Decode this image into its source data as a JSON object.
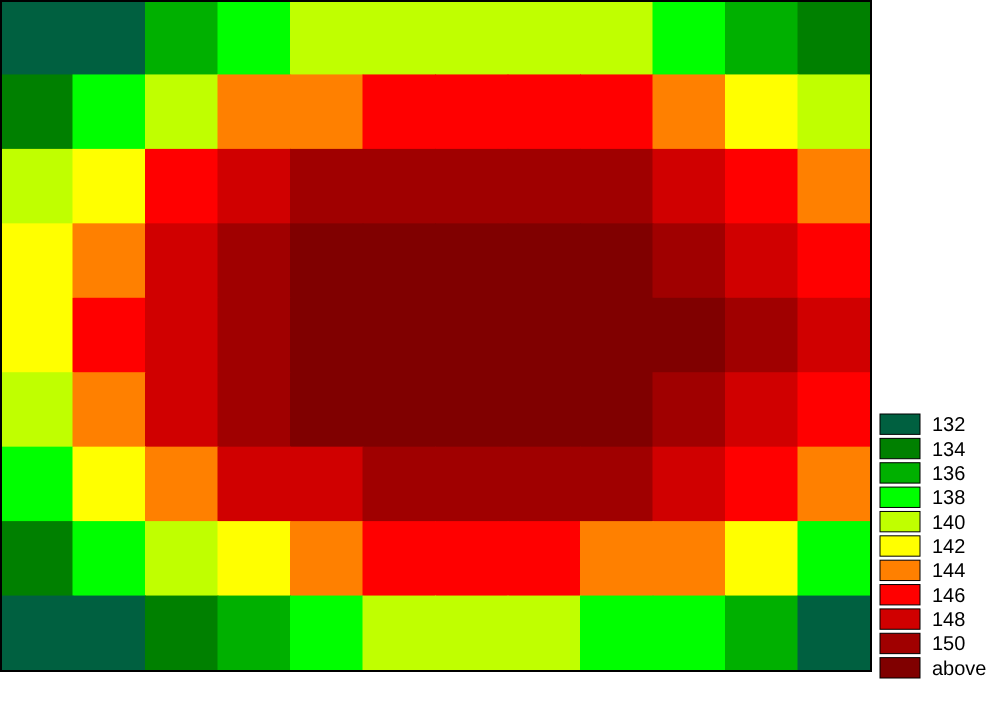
{
  "chart_data": {
    "type": "heatmap",
    "categories": [
      null,
      null,
      null,
      null,
      null,
      null,
      null,
      null,
      null,
      null,
      null,
      null
    ],
    "y_categories": [
      null,
      null,
      null,
      null,
      null,
      null,
      null,
      null,
      null
    ],
    "cells": [
      [
        131,
        131,
        135,
        137,
        139,
        139,
        139,
        139,
        139,
        137,
        135,
        133
      ],
      [
        133,
        137,
        139,
        143,
        143,
        145,
        145,
        145,
        145,
        143,
        141,
        139
      ],
      [
        139,
        141,
        145,
        147,
        149,
        149,
        149,
        149,
        149,
        147,
        145,
        143
      ],
      [
        141,
        143,
        147,
        149,
        151,
        151,
        151,
        151,
        151,
        149,
        147,
        145
      ],
      [
        141,
        145,
        147,
        149,
        151,
        151,
        151,
        151,
        151,
        151,
        149,
        147
      ],
      [
        139,
        143,
        147,
        149,
        151,
        151,
        151,
        151,
        151,
        149,
        147,
        145
      ],
      [
        137,
        141,
        143,
        147,
        147,
        149,
        149,
        149,
        149,
        147,
        145,
        143
      ],
      [
        133,
        137,
        139,
        141,
        143,
        145,
        145,
        145,
        143,
        143,
        141,
        137
      ],
      [
        131,
        131,
        133,
        135,
        137,
        139,
        139,
        139,
        137,
        137,
        135,
        131
      ]
    ],
    "clim": [
      131,
      153
    ],
    "cticks": [
      132,
      134,
      136,
      138,
      140,
      142,
      144,
      146,
      148,
      150,
      {
        "value": 152,
        "label": "above"
      }
    ],
    "colors": [
      "#006040",
      "#008000",
      "#00b000",
      "#00ff00",
      "#c0ff00",
      "#ffff00",
      "#ff8000",
      "#ff0000",
      "#d00000",
      "#a00000",
      "#800000"
    ]
  }
}
